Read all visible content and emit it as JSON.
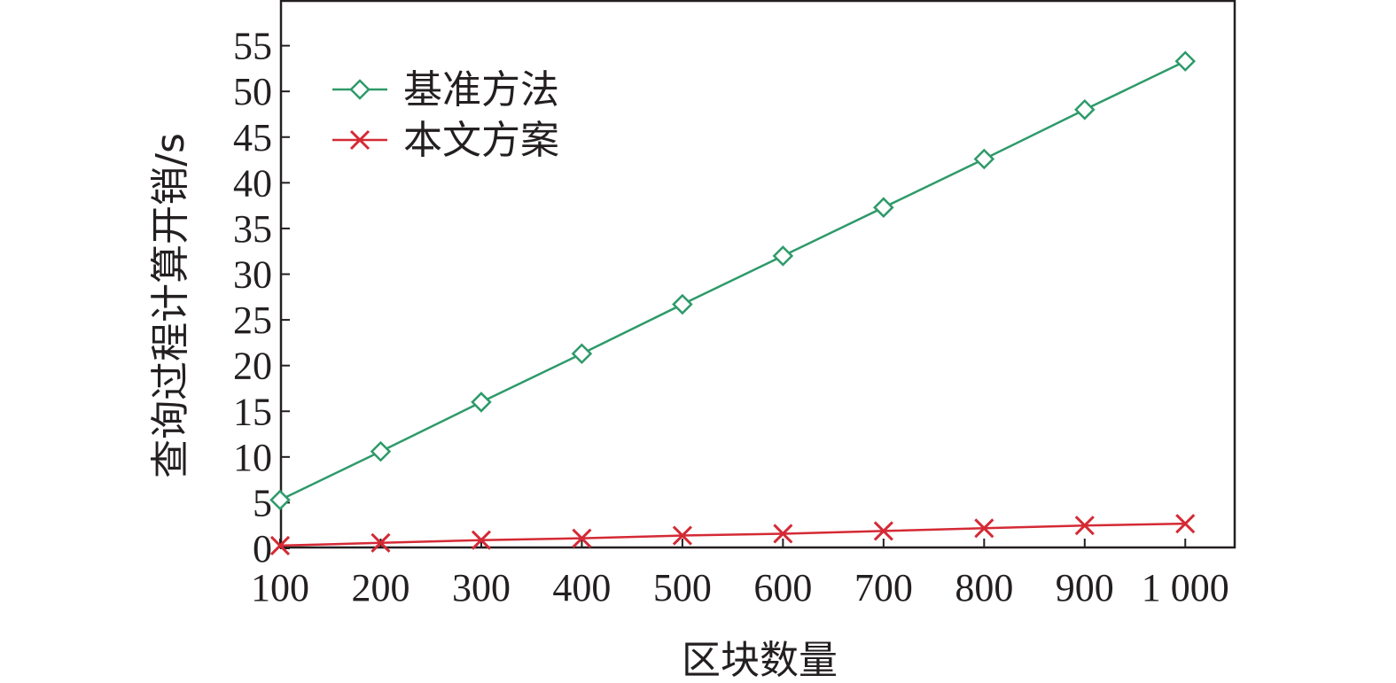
{
  "chart_data": {
    "type": "line",
    "title": "",
    "xlabel": "区块数量",
    "ylabel": "查询过程计算开销/s",
    "categories": [
      "100",
      "200",
      "300",
      "400",
      "500",
      "600",
      "700",
      "800",
      "900",
      "1 000"
    ],
    "x": [
      100,
      200,
      300,
      400,
      500,
      600,
      700,
      800,
      900,
      1000
    ],
    "xlim": [
      100,
      1050
    ],
    "ylim": [
      0,
      60
    ],
    "yticks": [
      0,
      5,
      10,
      15,
      20,
      25,
      30,
      35,
      40,
      45,
      50,
      55
    ],
    "ytick_labels": [
      "0",
      "5",
      "10",
      "15",
      "20",
      "25",
      "30",
      "35",
      "40",
      "45",
      "50",
      "55"
    ],
    "grid": false,
    "legend_position": "top-left",
    "series": [
      {
        "name": "基准方法",
        "marker": "diamond",
        "color": "#2e9a6a",
        "values": [
          5.3,
          10.6,
          16.0,
          21.3,
          26.7,
          32.0,
          37.3,
          42.6,
          48.0,
          53.3
        ]
      },
      {
        "name": "本文方案",
        "marker": "x",
        "color": "#d42a35",
        "values": [
          0.3,
          0.6,
          0.9,
          1.1,
          1.4,
          1.6,
          1.9,
          2.2,
          2.5,
          2.7
        ]
      }
    ]
  }
}
